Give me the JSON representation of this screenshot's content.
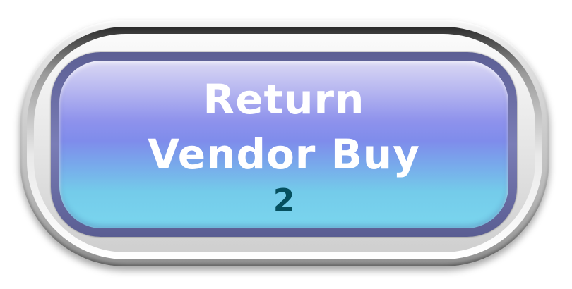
{
  "button": {
    "line1": "Return",
    "line2": "Vendor Buy",
    "count": "2"
  },
  "colors": {
    "label_text": "#ffffff",
    "count_text": "#05505f",
    "rim": "#6b6ea6",
    "face_top": "#b6b6f0",
    "face_bottom": "#7ad6ee"
  }
}
